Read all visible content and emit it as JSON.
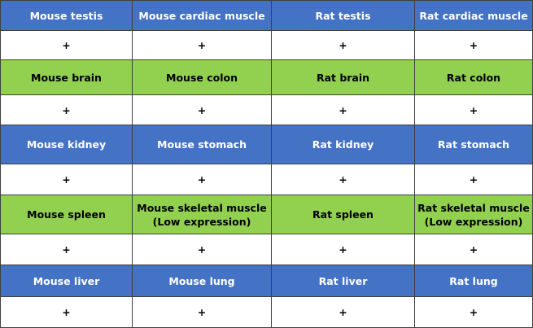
{
  "table": {
    "rows": [
      [
        "Mouse testis",
        "Mouse cardiac muscle",
        "Rat testis",
        "Rat cardiac muscle"
      ],
      [
        "+",
        "+",
        "+",
        "+"
      ],
      [
        "Mouse brain",
        "Mouse colon",
        "Rat brain",
        "Rat colon"
      ],
      [
        "+",
        "+",
        "+",
        "+"
      ],
      [
        "Mouse kidney",
        "Mouse stomach",
        "Rat kidney",
        "Rat stomach"
      ],
      [
        "+",
        "+",
        "+",
        "+"
      ],
      [
        "Mouse spleen",
        [
          "Mouse skeletal muscle",
          "(Low expression)"
        ],
        "Rat spleen",
        [
          "Rat skeletal muscle",
          "(Low expression)"
        ]
      ],
      [
        "+",
        "+",
        "+",
        "+"
      ],
      [
        "Mouse liver",
        "Mouse lung",
        "Rat liver",
        "Rat lung"
      ],
      [
        "+",
        "+",
        "+",
        "+"
      ]
    ]
  }
}
